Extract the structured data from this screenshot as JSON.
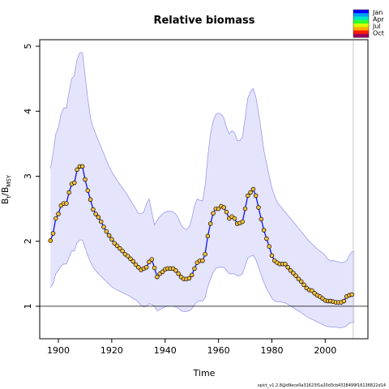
{
  "chart_data": {
    "type": "line",
    "title": "Relative biomass",
    "xlabel": "Time",
    "ylabel": "B_t / B_MSY",
    "ylabel_main": "B",
    "ylabel_sub1": "t",
    "ylabel_sep": "/B",
    "ylabel_sub2": "MSY",
    "xlim": [
      1893,
      2016
    ],
    "ylim": [
      0.5,
      5.1
    ],
    "xticks": [
      1900,
      1920,
      1940,
      1960,
      1980,
      2000
    ],
    "yticks": [
      1,
      2,
      3,
      4,
      5
    ],
    "reference_line_y": 1,
    "vertical_line_x": 2010.5,
    "grid": false,
    "legend": {
      "position": "top-right",
      "labels": [
        "Jan",
        "Apr",
        "Jul",
        "Oct"
      ],
      "colors": [
        "#0000ff",
        "#00a0ff",
        "#00e8c0",
        "#30ff30",
        "#d8ff00",
        "#ffb000",
        "#ff2000",
        "#a00060"
      ]
    },
    "series": [
      {
        "kind": "estimate",
        "color": "#0000ff",
        "x": [
          1897,
          1898,
          1899,
          1900,
          1901,
          1902,
          1903,
          1904,
          1905,
          1906,
          1907,
          1908,
          1909,
          1910,
          1911,
          1912,
          1913,
          1914,
          1915,
          1916,
          1917,
          1918,
          1919,
          1920,
          1921,
          1922,
          1923,
          1924,
          1925,
          1926,
          1927,
          1928,
          1929,
          1930,
          1931,
          1932,
          1933,
          1934,
          1935,
          1936,
          1937,
          1938,
          1939,
          1940,
          1941,
          1942,
          1943,
          1944,
          1945,
          1946,
          1947,
          1948,
          1949,
          1950,
          1951,
          1952,
          1953,
          1954,
          1955,
          1956,
          1957,
          1958,
          1959,
          1960,
          1961,
          1962,
          1963,
          1964,
          1965,
          1966,
          1967,
          1968,
          1969,
          1970,
          1971,
          1972,
          1973,
          1974,
          1975,
          1976,
          1977,
          1978,
          1979,
          1980,
          1981,
          1982,
          1983,
          1984,
          1985,
          1986,
          1987,
          1988,
          1989,
          1990,
          1991,
          1992,
          1993,
          1994,
          1995,
          1996,
          1997,
          1998,
          1999,
          2000,
          2001,
          2002,
          2003,
          2004,
          2005,
          2006,
          2007,
          2008,
          2009,
          2010
        ],
        "y": [
          2.01,
          2.12,
          2.35,
          2.42,
          2.55,
          2.58,
          2.58,
          2.75,
          2.88,
          2.9,
          3.1,
          3.15,
          3.15,
          2.95,
          2.78,
          2.64,
          2.49,
          2.42,
          2.37,
          2.3,
          2.22,
          2.15,
          2.09,
          2.03,
          1.97,
          1.93,
          1.89,
          1.85,
          1.8,
          1.77,
          1.73,
          1.69,
          1.64,
          1.6,
          1.56,
          1.58,
          1.6,
          1.68,
          1.72,
          1.59,
          1.45,
          1.5,
          1.53,
          1.57,
          1.58,
          1.58,
          1.58,
          1.55,
          1.5,
          1.45,
          1.42,
          1.42,
          1.43,
          1.48,
          1.58,
          1.67,
          1.7,
          1.7,
          1.8,
          2.08,
          2.27,
          2.43,
          2.5,
          2.5,
          2.54,
          2.52,
          2.45,
          2.35,
          2.38,
          2.35,
          2.27,
          2.28,
          2.3,
          2.5,
          2.7,
          2.75,
          2.8,
          2.7,
          2.52,
          2.34,
          2.17,
          2.04,
          1.92,
          1.78,
          1.7,
          1.67,
          1.65,
          1.65,
          1.65,
          1.6,
          1.55,
          1.51,
          1.47,
          1.42,
          1.38,
          1.33,
          1.28,
          1.25,
          1.24,
          1.2,
          1.17,
          1.15,
          1.12,
          1.09,
          1.08,
          1.08,
          1.07,
          1.06,
          1.06,
          1.06,
          1.08,
          1.15,
          1.17,
          1.18
        ]
      },
      {
        "kind": "ci_upper",
        "color": "#8888ee",
        "x": [
          1897,
          1898,
          1899,
          1900,
          1901,
          1902,
          1903,
          1904,
          1905,
          1906,
          1907,
          1908,
          1909,
          1910,
          1911,
          1912,
          1913,
          1914,
          1915,
          1916,
          1917,
          1918,
          1919,
          1920,
          1921,
          1922,
          1923,
          1924,
          1925,
          1926,
          1927,
          1928,
          1929,
          1930,
          1931,
          1932,
          1933,
          1934,
          1935,
          1936,
          1937,
          1938,
          1939,
          1940,
          1941,
          1942,
          1943,
          1944,
          1945,
          1946,
          1947,
          1948,
          1949,
          1950,
          1951,
          1952,
          1953,
          1954,
          1955,
          1956,
          1957,
          1958,
          1959,
          1960,
          1961,
          1962,
          1963,
          1964,
          1965,
          1966,
          1967,
          1968,
          1969,
          1970,
          1971,
          1972,
          1973,
          1974,
          1975,
          1976,
          1977,
          1978,
          1979,
          1980,
          1981,
          1982,
          1983,
          1984,
          1985,
          1986,
          1987,
          1988,
          1989,
          1990,
          1991,
          1992,
          1993,
          1994,
          1995,
          1996,
          1997,
          1998,
          1999,
          2000,
          2001,
          2002,
          2003,
          2004,
          2005,
          2006,
          2007,
          2008,
          2009,
          2010,
          2011
        ],
        "y": [
          3.12,
          3.35,
          3.65,
          3.75,
          3.95,
          4.05,
          4.05,
          4.3,
          4.5,
          4.55,
          4.8,
          4.9,
          4.9,
          4.55,
          4.2,
          3.9,
          3.75,
          3.65,
          3.55,
          3.45,
          3.35,
          3.25,
          3.15,
          3.07,
          3.0,
          2.94,
          2.88,
          2.82,
          2.76,
          2.7,
          2.63,
          2.57,
          2.5,
          2.43,
          2.42,
          2.45,
          2.58,
          2.65,
          2.45,
          2.25,
          2.32,
          2.38,
          2.42,
          2.45,
          2.46,
          2.46,
          2.45,
          2.42,
          2.35,
          2.25,
          2.2,
          2.18,
          2.22,
          2.35,
          2.55,
          2.65,
          2.63,
          2.62,
          2.85,
          3.3,
          3.65,
          3.85,
          3.95,
          3.97,
          3.95,
          3.9,
          3.75,
          3.65,
          3.7,
          3.67,
          3.55,
          3.55,
          3.6,
          3.9,
          4.2,
          4.3,
          4.35,
          4.22,
          3.98,
          3.7,
          3.4,
          3.2,
          3.0,
          2.82,
          2.7,
          2.6,
          2.55,
          2.5,
          2.45,
          2.4,
          2.35,
          2.3,
          2.25,
          2.2,
          2.15,
          2.1,
          2.05,
          2.0,
          1.96,
          1.92,
          1.88,
          1.85,
          1.82,
          1.78,
          1.72,
          1.7,
          1.7,
          1.69,
          1.68,
          1.67,
          1.68,
          1.7,
          1.78,
          1.84,
          1.84
        ]
      },
      {
        "kind": "ci_lower",
        "color": "#8888ee",
        "x": [
          1897,
          1898,
          1899,
          1900,
          1901,
          1902,
          1903,
          1904,
          1905,
          1906,
          1907,
          1908,
          1909,
          1910,
          1911,
          1912,
          1913,
          1914,
          1915,
          1916,
          1917,
          1918,
          1919,
          1920,
          1921,
          1922,
          1923,
          1924,
          1925,
          1926,
          1927,
          1928,
          1929,
          1930,
          1931,
          1932,
          1933,
          1934,
          1935,
          1936,
          1937,
          1938,
          1939,
          1940,
          1941,
          1942,
          1943,
          1944,
          1945,
          1946,
          1947,
          1948,
          1949,
          1950,
          1951,
          1952,
          1953,
          1954,
          1955,
          1956,
          1957,
          1958,
          1959,
          1960,
          1961,
          1962,
          1963,
          1964,
          1965,
          1966,
          1967,
          1968,
          1969,
          1970,
          1971,
          1972,
          1973,
          1974,
          1975,
          1976,
          1977,
          1978,
          1979,
          1980,
          1981,
          1982,
          1983,
          1984,
          1985,
          1986,
          1987,
          1988,
          1989,
          1990,
          1991,
          1992,
          1993,
          1994,
          1995,
          1996,
          1997,
          1998,
          1999,
          2000,
          2001,
          2002,
          2003,
          2004,
          2005,
          2006,
          2007,
          2008,
          2009,
          2010,
          2011
        ],
        "y": [
          1.29,
          1.35,
          1.5,
          1.55,
          1.62,
          1.65,
          1.65,
          1.75,
          1.85,
          1.85,
          1.98,
          2.02,
          2.02,
          1.9,
          1.78,
          1.68,
          1.6,
          1.55,
          1.5,
          1.46,
          1.42,
          1.38,
          1.34,
          1.3,
          1.27,
          1.25,
          1.23,
          1.21,
          1.19,
          1.17,
          1.15,
          1.12,
          1.1,
          1.06,
          1.01,
          0.99,
          1.0,
          1.04,
          1.03,
          1.0,
          0.93,
          0.95,
          0.97,
          0.99,
          1.0,
          1.0,
          1.0,
          0.99,
          0.97,
          0.93,
          0.92,
          0.92,
          0.93,
          0.96,
          1.02,
          1.07,
          1.08,
          1.08,
          1.13,
          1.3,
          1.42,
          1.52,
          1.58,
          1.6,
          1.6,
          1.6,
          1.55,
          1.5,
          1.5,
          1.5,
          1.47,
          1.47,
          1.5,
          1.62,
          1.74,
          1.77,
          1.78,
          1.72,
          1.6,
          1.48,
          1.37,
          1.27,
          1.2,
          1.12,
          1.08,
          1.07,
          1.07,
          1.06,
          1.05,
          1.03,
          1.0,
          0.98,
          0.95,
          0.93,
          0.9,
          0.87,
          0.84,
          0.82,
          0.8,
          0.78,
          0.76,
          0.74,
          0.72,
          0.7,
          0.69,
          0.68,
          0.68,
          0.68,
          0.67,
          0.67,
          0.68,
          0.7,
          0.74,
          0.75,
          0.75
        ]
      }
    ]
  },
  "footer_text": "spict_v1.2.8@d9ece0a31623f1a20d3cb4328499f16136822d14"
}
